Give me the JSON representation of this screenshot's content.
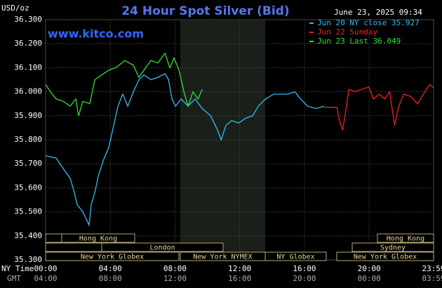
{
  "chart_data": {
    "type": "line",
    "title": "24 Hour Spot Silver (Bid)",
    "website": "www.kitco.com",
    "timestamp": "June 23, 2025 09:34",
    "y_unit_label": "USD/oz",
    "x_row_labels": [
      "NY Time",
      "GMT"
    ],
    "ylim": [
      35.3,
      36.3
    ],
    "yticks": [
      {
        "value": 35.3,
        "label": "35.300"
      },
      {
        "value": 35.4,
        "label": "35.400"
      },
      {
        "value": 35.5,
        "label": "35.500"
      },
      {
        "value": 35.6,
        "label": "35.600"
      },
      {
        "value": 35.7,
        "label": "35.700"
      },
      {
        "value": 35.8,
        "label": "35.800"
      },
      {
        "value": 35.9,
        "label": "35.900"
      },
      {
        "value": 36.0,
        "label": "36.000"
      },
      {
        "value": 36.1,
        "label": "36.100"
      },
      {
        "value": 36.2,
        "label": "36.200"
      },
      {
        "value": 36.3,
        "label": "36.300"
      }
    ],
    "xlim": [
      0,
      23.983
    ],
    "xticks": [
      {
        "value": 0,
        "label": "00:00"
      },
      {
        "value": 4,
        "label": "04:00"
      },
      {
        "value": 8,
        "label": "08:00"
      },
      {
        "value": 12,
        "label": "12:00"
      },
      {
        "value": 16,
        "label": "16:00"
      },
      {
        "value": 20,
        "label": "20:00"
      },
      {
        "value": 23.983,
        "label": "23:59"
      }
    ],
    "gmt_labels": [
      "04:00",
      "08:00",
      "12:00",
      "16:00",
      "20:00",
      "00:00",
      "03:59"
    ],
    "grid": true,
    "sessions": [
      "Hong Kong",
      "London",
      "New York Globex",
      "New York NYMEX",
      "NY Globex",
      "Hong Kong",
      "Sydney",
      "New York Globex"
    ],
    "series": [
      {
        "name": "Jun 20 NY close 35.927",
        "color": "#33bbee",
        "x": [
          0,
          0.65,
          1.09,
          1.52,
          1.74,
          1.95,
          2.3,
          2.69,
          2.82,
          3.04,
          3.26,
          3.6,
          3.91,
          4.21,
          4.47,
          4.77,
          5.08,
          5.43,
          5.77,
          6.08,
          6.51,
          6.94,
          7.38,
          7.6,
          7.81,
          8.03,
          8.38,
          8.81,
          9.24,
          9.68,
          10.2,
          10.63,
          10.85,
          11.15,
          11.5,
          11.94,
          12.37,
          12.8,
          13.15,
          13.59,
          14.11,
          14.54,
          14.97,
          15.41,
          15.76,
          16.19,
          16.71,
          17.23
        ],
        "values": [
          35.733,
          35.724,
          35.68,
          35.64,
          35.59,
          35.53,
          35.5,
          35.445,
          35.53,
          35.58,
          35.65,
          35.72,
          35.77,
          35.86,
          35.94,
          35.99,
          35.94,
          36.0,
          36.05,
          36.07,
          36.05,
          36.06,
          36.075,
          36.05,
          35.97,
          35.94,
          35.97,
          35.94,
          35.97,
          35.93,
          35.9,
          35.84,
          35.8,
          35.86,
          35.88,
          35.87,
          35.89,
          35.9,
          35.94,
          35.97,
          35.99,
          35.99,
          35.99,
          36.0,
          35.97,
          35.94,
          35.93,
          35.94
        ]
      },
      {
        "name": "Jun 22 Sunday",
        "color": "#ee2222",
        "x": [
          17.23,
          18.01,
          18.14,
          18.36,
          18.53,
          18.75,
          19.1,
          19.53,
          19.97,
          20.27,
          20.62,
          20.96,
          21.27,
          21.57,
          21.83,
          22.14,
          22.57,
          23.0,
          23.44,
          23.74,
          23.98
        ],
        "values": [
          35.935,
          35.935,
          35.885,
          35.84,
          35.91,
          36.01,
          36.0,
          36.01,
          36.02,
          35.97,
          35.99,
          35.97,
          36.0,
          35.86,
          35.94,
          35.99,
          35.98,
          35.95,
          36.0,
          36.03,
          36.016
        ]
      },
      {
        "name": "Jun 23 Last 36.049",
        "color": "#33dd33",
        "x": [
          0,
          0.3,
          0.65,
          1.09,
          1.52,
          1.87,
          2.04,
          2.3,
          2.73,
          3.04,
          3.47,
          3.91,
          4.34,
          4.9,
          5.43,
          5.77,
          6.08,
          6.51,
          6.94,
          7.38,
          7.68,
          7.94,
          8.25,
          8.55,
          8.81,
          9.11,
          9.42,
          9.68
        ],
        "values": [
          36.03,
          36.0,
          35.97,
          35.96,
          35.94,
          35.97,
          35.9,
          35.96,
          35.95,
          36.05,
          36.07,
          36.09,
          36.1,
          36.13,
          36.11,
          36.06,
          36.09,
          36.13,
          36.12,
          36.16,
          36.1,
          36.14,
          36.09,
          36.0,
          35.94,
          36.0,
          35.97,
          36.01
        ]
      }
    ]
  }
}
